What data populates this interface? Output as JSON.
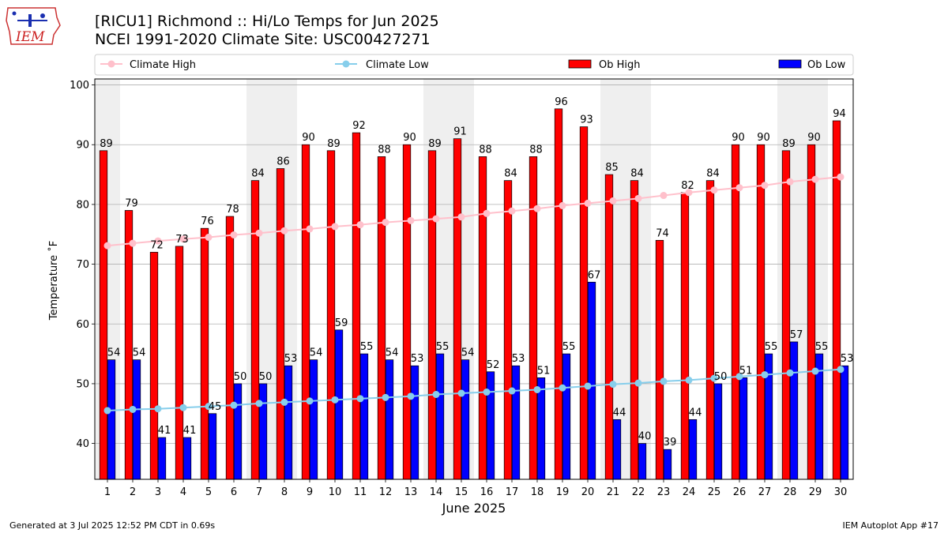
{
  "header": {
    "title_line1": "[RICU1] Richmond :: Hi/Lo Temps for Jun 2025",
    "title_line2": "NCEI 1991-2020 Climate Site: USC00427271",
    "logo_text": "IEM"
  },
  "footer": {
    "generated": "Generated at 3 Jul 2025 12:52 PM CDT in 0.69s",
    "app": "IEM Autoplot App #17"
  },
  "chart_data": {
    "type": "bar",
    "title": "[RICU1] Richmond :: Hi/Lo Temps for Jun 2025",
    "subtitle": "NCEI 1991-2020 Climate Site: USC00427271",
    "xlabel": "June 2025",
    "ylabel": "Temperature ˚F",
    "ylim": [
      34,
      101
    ],
    "yticks": [
      40,
      50,
      60,
      70,
      80,
      90,
      100
    ],
    "grid": "y-major",
    "legend_position": "top",
    "weekend_shading_days": [
      1,
      7,
      8,
      14,
      15,
      21,
      22,
      28,
      29
    ],
    "categories": [
      "1",
      "2",
      "3",
      "4",
      "5",
      "6",
      "7",
      "8",
      "9",
      "10",
      "11",
      "12",
      "13",
      "14",
      "15",
      "16",
      "17",
      "18",
      "19",
      "20",
      "21",
      "22",
      "23",
      "24",
      "25",
      "26",
      "27",
      "28",
      "29",
      "30"
    ],
    "series": [
      {
        "name": "Ob High",
        "kind": "bar",
        "color": "#ff0000",
        "values": [
          89,
          79,
          72,
          73,
          76,
          78,
          84,
          86,
          90,
          89,
          92,
          88,
          90,
          89,
          91,
          88,
          84,
          88,
          96,
          93,
          85,
          84,
          74,
          82,
          84,
          90,
          90,
          89,
          90,
          94
        ]
      },
      {
        "name": "Ob Low",
        "kind": "bar",
        "color": "#0000ff",
        "values": [
          54,
          54,
          41,
          41,
          45,
          50,
          50,
          53,
          54,
          59,
          55,
          54,
          53,
          55,
          54,
          52,
          53,
          51,
          55,
          67,
          44,
          40,
          39,
          44,
          50,
          51,
          55,
          57,
          55,
          53
        ]
      },
      {
        "name": "Climate High",
        "kind": "line",
        "color": "#ffc0cb",
        "values": [
          73.1,
          73.5,
          73.9,
          74.2,
          74.5,
          74.9,
          75.2,
          75.6,
          75.9,
          76.3,
          76.6,
          77.0,
          77.3,
          77.6,
          77.9,
          78.5,
          78.9,
          79.3,
          79.8,
          80.2,
          80.6,
          81.0,
          81.5,
          82.0,
          82.4,
          82.8,
          83.2,
          83.8,
          84.2,
          84.6
        ]
      },
      {
        "name": "Climate Low",
        "kind": "line",
        "color": "#87ceeb",
        "values": [
          45.5,
          45.7,
          45.8,
          46.0,
          46.2,
          46.4,
          46.7,
          46.9,
          47.1,
          47.3,
          47.5,
          47.7,
          47.9,
          48.2,
          48.4,
          48.6,
          48.8,
          49.0,
          49.3,
          49.6,
          49.9,
          50.1,
          50.4,
          50.6,
          50.9,
          51.2,
          51.5,
          51.8,
          52.1,
          52.4
        ]
      }
    ]
  }
}
